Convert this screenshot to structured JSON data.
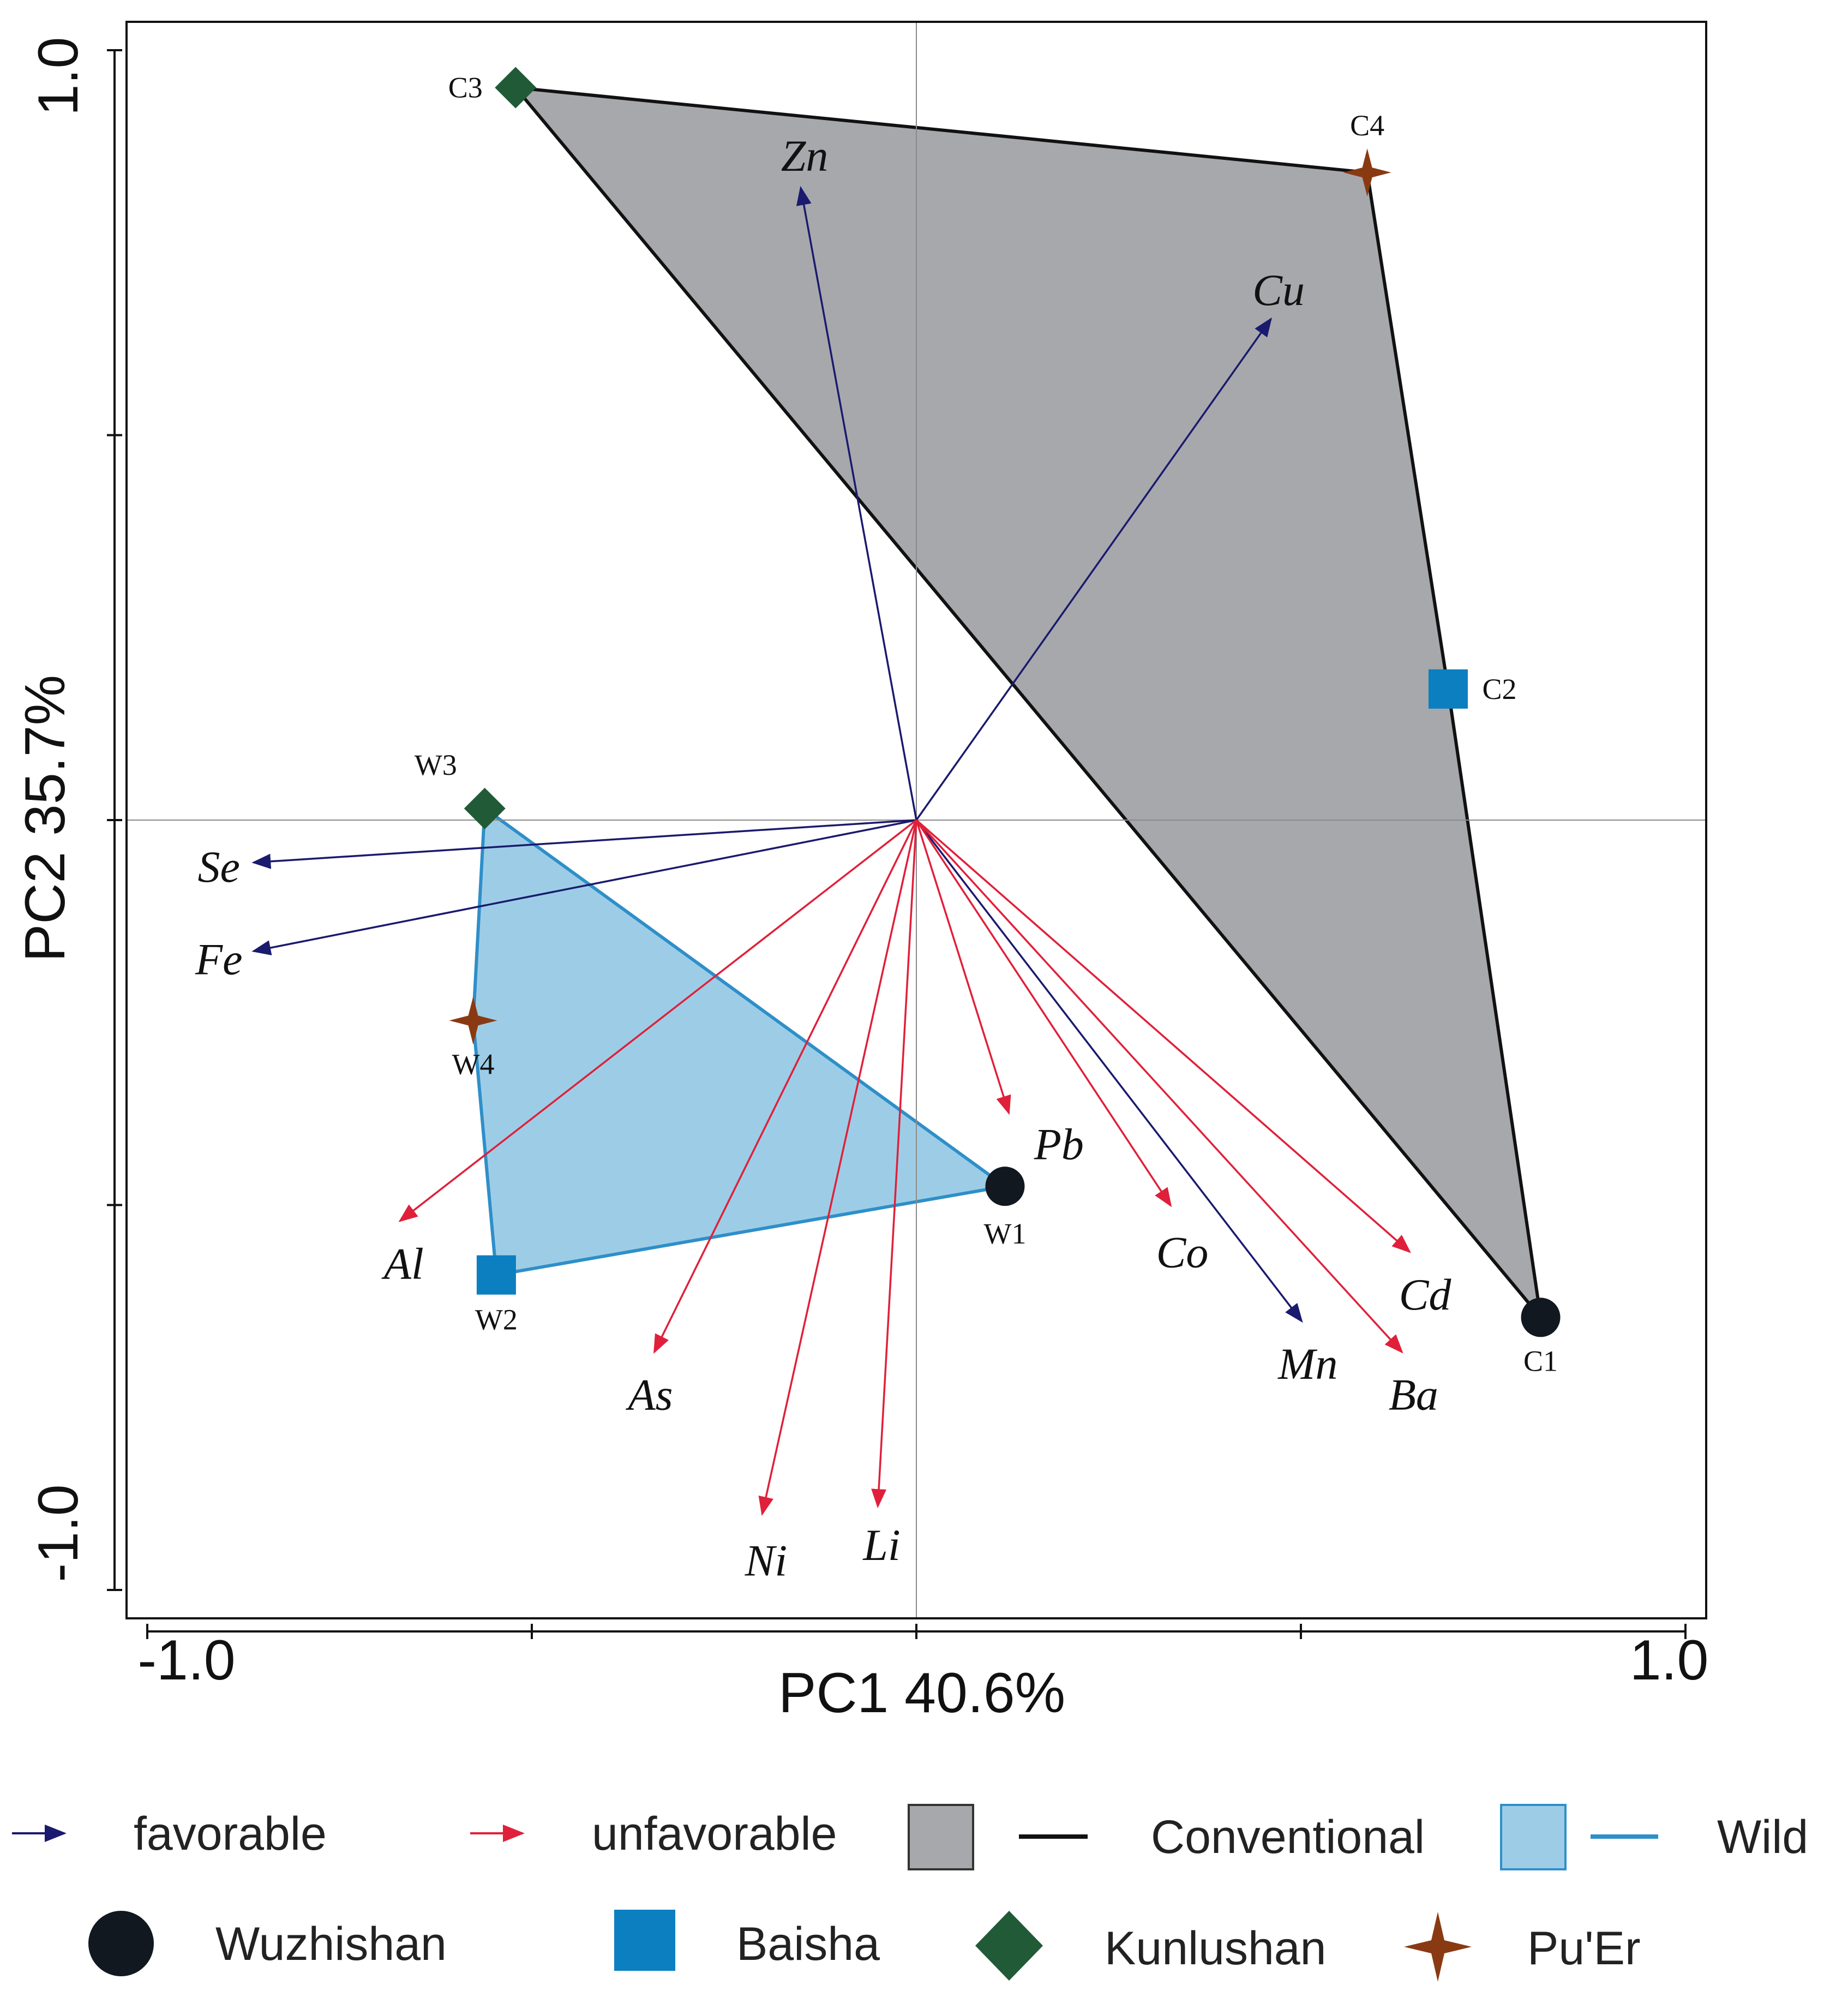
{
  "chart_data": {
    "type": "biplot",
    "xlabel": "PC1 40.6%",
    "ylabel": "PC2 35.7%",
    "xlim": [
      -1.0,
      1.0
    ],
    "ylim": [
      -1.0,
      1.0
    ],
    "x_tick_labels": [
      "-1.0",
      "1.0"
    ],
    "y_tick_labels": [
      "1.0",
      "-1.0"
    ],
    "colors": {
      "favorable": "#1a1a6e",
      "unfavorable": "#e0203a",
      "conventional_fill": "#a7a8ac",
      "conventional_edge": "#111111",
      "wild_fill": "#9dcde6",
      "wild_edge": "#2e8fc9",
      "wuzhishan": "#111820",
      "baisha": "#0b7fc0",
      "kunlushan": "#215a36",
      "puer": "#8a3a12"
    },
    "vectors": [
      {
        "name": "Zn",
        "group": "favorable",
        "x": -0.15,
        "y": 0.82,
        "lx": -0.145,
        "ly": 0.862
      },
      {
        "name": "Cu",
        "group": "favorable",
        "x": 0.46,
        "y": 0.65,
        "lx": 0.47,
        "ly": 0.688
      },
      {
        "name": "Se",
        "group": "favorable",
        "x": -0.86,
        "y": -0.055,
        "lx": -0.905,
        "ly": -0.06
      },
      {
        "name": "Fe",
        "group": "favorable",
        "x": -0.86,
        "y": -0.17,
        "lx": -0.905,
        "ly": -0.18
      },
      {
        "name": "Mn",
        "group": "favorable",
        "x": 0.5,
        "y": -0.65,
        "lx": 0.508,
        "ly": -0.705
      },
      {
        "name": "Pb",
        "group": "unfavorable",
        "x": 0.12,
        "y": -0.38,
        "lx": 0.185,
        "ly": -0.42
      },
      {
        "name": "Co",
        "group": "unfavorable",
        "x": 0.33,
        "y": -0.5,
        "lx": 0.345,
        "ly": -0.56
      },
      {
        "name": "Cd",
        "group": "unfavorable",
        "x": 0.64,
        "y": -0.56,
        "lx": 0.66,
        "ly": -0.615
      },
      {
        "name": "Ba",
        "group": "unfavorable",
        "x": 0.63,
        "y": -0.69,
        "lx": 0.645,
        "ly": -0.745
      },
      {
        "name": "Al",
        "group": "unfavorable",
        "x": -0.67,
        "y": -0.52,
        "lx": -0.665,
        "ly": -0.575
      },
      {
        "name": "As",
        "group": "unfavorable",
        "x": -0.34,
        "y": -0.69,
        "lx": -0.345,
        "ly": -0.745
      },
      {
        "name": "Ni",
        "group": "unfavorable",
        "x": -0.2,
        "y": -0.9,
        "lx": -0.195,
        "ly": -0.96
      },
      {
        "name": "Li",
        "group": "unfavorable",
        "x": -0.05,
        "y": -0.89,
        "lx": -0.045,
        "ly": -0.94
      }
    ],
    "samples": [
      {
        "name": "C1",
        "site": "Wuzhishan",
        "group": "Conventional",
        "x": 0.81,
        "y": -0.645
      },
      {
        "name": "C2",
        "site": "Baisha",
        "group": "Conventional",
        "x": 0.69,
        "y": 0.17
      },
      {
        "name": "C3",
        "site": "Kunlushan",
        "group": "Conventional",
        "x": -0.52,
        "y": 0.95
      },
      {
        "name": "C4",
        "site": "Pu'Er",
        "group": "Conventional",
        "x": 0.585,
        "y": 0.84
      },
      {
        "name": "W1",
        "site": "Wuzhishan",
        "group": "Wild",
        "x": 0.115,
        "y": -0.475
      },
      {
        "name": "W2",
        "site": "Baisha",
        "group": "Wild",
        "x": -0.545,
        "y": -0.59
      },
      {
        "name": "W3",
        "site": "Kunlushan",
        "group": "Wild",
        "x": -0.56,
        "y": 0.015
      },
      {
        "name": "W4",
        "site": "Pu'Er",
        "group": "Wild",
        "x": -0.575,
        "y": -0.26
      }
    ],
    "hulls": [
      {
        "name": "Conventional",
        "points": [
          "C3",
          "C4",
          "C2",
          "C1"
        ]
      },
      {
        "name": "Wild",
        "points": [
          "W3",
          "W1",
          "W2",
          "W4"
        ]
      }
    ]
  },
  "legend": {
    "favorable": "favorable",
    "unfavorable": "unfavorable",
    "conventional": "Conventional",
    "wild": "Wild",
    "wuzhishan": "Wuzhishan",
    "baisha": "Baisha",
    "kunlushan": "Kunlushan",
    "puer": "Pu'Er"
  }
}
